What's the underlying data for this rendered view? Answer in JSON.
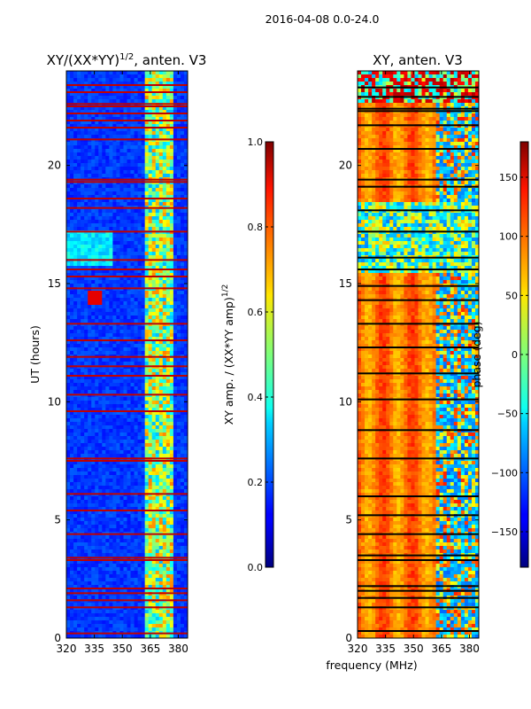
{
  "chart_data": [
    {
      "type": "heatmap",
      "id": "amp",
      "suptitle": "2016-04-08 0.0-24.0",
      "title_main": "XY/(XX*YY)",
      "title_sup": "1/2",
      "title_tail": ", anten. V3",
      "ylabel": "UT (hours)",
      "xlabel": "",
      "xlim": [
        320,
        385
      ],
      "ylim": [
        0,
        24
      ],
      "xticks": [
        320,
        335,
        350,
        365,
        380
      ],
      "yticks": [
        0,
        5,
        10,
        15,
        20
      ],
      "flagged_hours": [
        0.2,
        1.3,
        1.6,
        1.9,
        2.1,
        3.3,
        3.4,
        4.4,
        5.4,
        6.1,
        7.5,
        7.6,
        9.6,
        10.3,
        11.1,
        11.5,
        11.9,
        12.6,
        13.3,
        14.8,
        15.3,
        15.6,
        16.0,
        17.2,
        18.2,
        18.6,
        19.3,
        19.4,
        21.1,
        21.6,
        21.9,
        22.2,
        22.5,
        22.6,
        23.1,
        23.4
      ],
      "colorbar": {
        "label_main": "XY amp. / (XX*YY amp)",
        "label_sup": "1/2",
        "range": [
          0.0,
          1.0
        ],
        "ticks": [
          "0.0",
          "0.2",
          "0.4",
          "0.6",
          "0.8",
          "1.0"
        ]
      }
    },
    {
      "type": "heatmap",
      "id": "phase",
      "title": "XY, anten. V3",
      "ylabel": "",
      "xlabel": "frequency (MHz)",
      "xlim": [
        320,
        385
      ],
      "ylim": [
        0,
        24
      ],
      "xticks": [
        320,
        335,
        350,
        365,
        380
      ],
      "yticks": [
        0,
        5,
        10,
        15,
        20
      ],
      "flagged_hours": [
        0.3,
        1.3,
        1.7,
        2.0,
        2.2,
        3.3,
        3.5,
        4.4,
        5.2,
        6.0,
        7.6,
        8.8,
        10.1,
        11.2,
        12.3,
        13.3,
        14.3,
        14.9,
        15.6,
        16.1,
        17.2,
        18.1,
        19.1,
        19.4,
        20.7,
        21.7,
        22.3,
        22.4,
        22.9,
        23.3
      ],
      "colorbar": {
        "label": "phase (deg)",
        "range": [
          -180,
          180
        ],
        "ticks": [
          "−150",
          "−100",
          "−50",
          "0",
          "50",
          "100",
          "150"
        ]
      }
    }
  ]
}
